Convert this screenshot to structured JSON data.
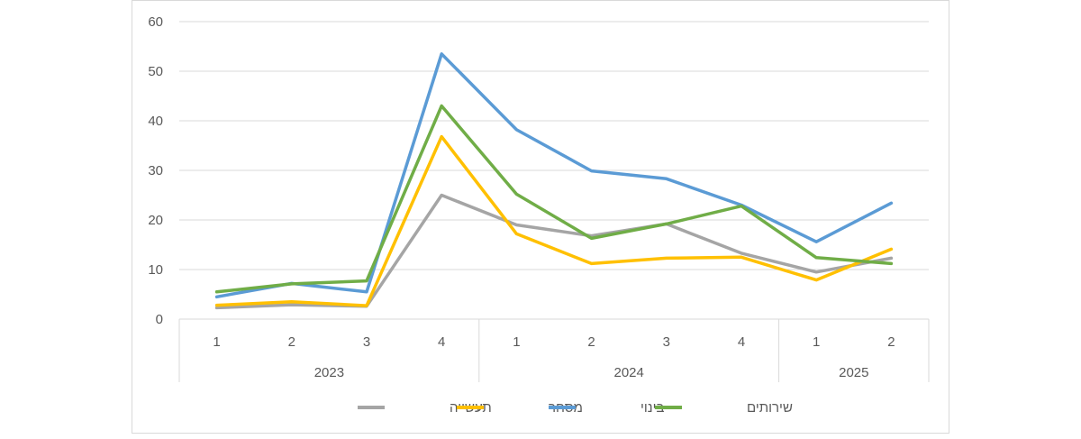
{
  "chart_data": {
    "type": "line",
    "title": "",
    "xlabel": "",
    "ylabel": "",
    "ylim": [
      0,
      60
    ],
    "yticks": [
      0,
      10,
      20,
      30,
      40,
      50,
      60
    ],
    "grid": true,
    "legend_position": "bottom",
    "categories": [
      "1",
      "2",
      "3",
      "4",
      "1",
      "2",
      "3",
      "4",
      "1",
      "2"
    ],
    "year_groups": [
      {
        "label": "2023",
        "count": 4
      },
      {
        "label": "2024",
        "count": 4
      },
      {
        "label": "2025",
        "count": 2
      }
    ],
    "series": [
      {
        "name": "תעשייה",
        "color": "#a5a5a5",
        "values": [
          2.3,
          2.9,
          2.6,
          25.0,
          19.0,
          16.8,
          19.2,
          13.3,
          9.5,
          12.3
        ]
      },
      {
        "name": "מסחר",
        "color": "#ffc000",
        "values": [
          2.8,
          3.5,
          2.7,
          36.8,
          17.2,
          11.2,
          12.3,
          12.5,
          7.9,
          14.1
        ]
      },
      {
        "name": "בינוי",
        "color": "#5b9bd5",
        "values": [
          4.5,
          7.2,
          5.5,
          53.5,
          38.2,
          29.9,
          28.3,
          23.0,
          15.6,
          23.4
        ]
      },
      {
        "name": "שירותים",
        "color": "#70ad47",
        "values": [
          5.5,
          7.1,
          7.7,
          43.0,
          25.2,
          16.3,
          19.2,
          22.8,
          12.4,
          11.2
        ]
      }
    ]
  }
}
